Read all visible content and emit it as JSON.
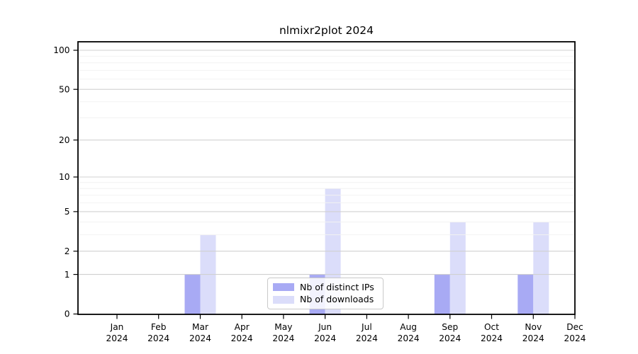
{
  "chart_data": {
    "type": "bar",
    "title": "nlmixr2plot 2024",
    "categories": [
      "Jan",
      "Feb",
      "Mar",
      "Apr",
      "May",
      "Jun",
      "Jul",
      "Aug",
      "Sep",
      "Oct",
      "Nov",
      "Dec"
    ],
    "category_year": "2024",
    "series": [
      {
        "name": "Nb of distinct IPs",
        "color": "#a8aaf4",
        "values": [
          0,
          0,
          1,
          0,
          0,
          1,
          0,
          0,
          1,
          0,
          1,
          0
        ]
      },
      {
        "name": "Nb of downloads",
        "color": "#dbddfa",
        "values": [
          0,
          0,
          3,
          0,
          0,
          8,
          0,
          0,
          4,
          0,
          4,
          0
        ]
      }
    ],
    "xlabel": "",
    "ylabel": "",
    "y_scale": "log1p",
    "ylim": [
      0,
      116
    ],
    "y_ticks": [
      0,
      1,
      2,
      5,
      10,
      20,
      50,
      100
    ],
    "y_minor_gridlines": [
      3,
      4,
      6,
      7,
      8,
      9,
      30,
      40,
      60,
      70,
      80,
      90
    ],
    "grid": true,
    "legend_position": "lower center"
  },
  "colors": {
    "frame": "#000000",
    "major_grid": "#d0d0d0",
    "minor_grid": "#f2f2f2",
    "tick_text": "#000000",
    "background": "#ffffff"
  }
}
